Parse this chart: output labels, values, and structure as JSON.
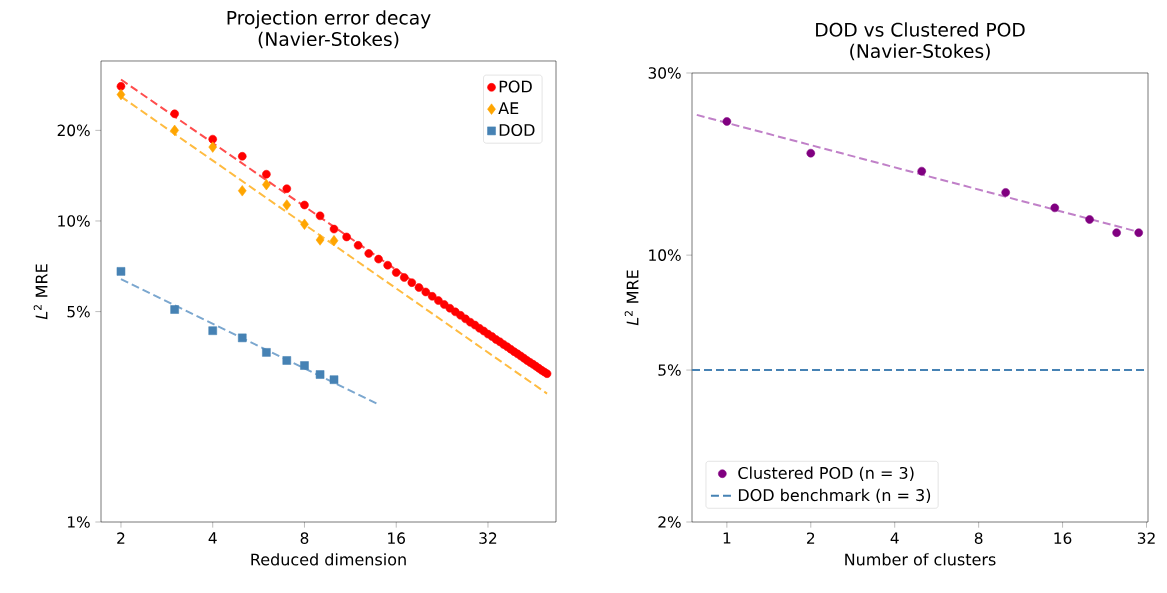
{
  "chart_data": [
    {
      "type": "scatter",
      "title": "Projection error decay",
      "subtitle": "(Navier-Stokes)",
      "xlabel": "Reduced dimension",
      "ylabel": "*L*$^{2}$ MRE",
      "log": "xy",
      "legend": "top right",
      "xlim": [
        1.72,
        53.5
      ],
      "ylim": [
        1,
        34
      ],
      "xticks": [
        2,
        4,
        8,
        16,
        32
      ],
      "yticks": [
        {
          "value": 1,
          "label": "1%"
        },
        {
          "value": 5,
          "label": "5%"
        },
        {
          "value": 10,
          "label": "10%"
        },
        {
          "value": 20,
          "label": "20%"
        }
      ],
      "series": [
        {
          "type": "line",
          "color": "#ff4d4d",
          "line_style": "dashed",
          "x": [
            2,
            50
          ],
          "values": [
            29.5,
            3.1
          ]
        },
        {
          "type": "line",
          "color": "#ffbb40",
          "line_style": "dashed",
          "x": [
            2,
            50
          ],
          "values": [
            25.9,
            2.67
          ]
        },
        {
          "type": "line",
          "color": "#7ba7cf",
          "line_style": "dashed",
          "x": [
            2,
            14
          ],
          "values": [
            6.41,
            2.46
          ]
        },
        {
          "name": "POD",
          "color": "#ff0000",
          "marker": "circle",
          "x": [
            2,
            3,
            4,
            5,
            6,
            7,
            8,
            9,
            10,
            11,
            12,
            13,
            14,
            15,
            16,
            17,
            18,
            19,
            20,
            21,
            22,
            23,
            24,
            25,
            26,
            27,
            28,
            29,
            30,
            31,
            32,
            33,
            34,
            35,
            36,
            37,
            38,
            39,
            40,
            41,
            42,
            43,
            44,
            45,
            46,
            47,
            48,
            49,
            50
          ],
          "values": [
            28,
            22.7,
            18.7,
            16.4,
            14.3,
            12.8,
            11.3,
            10.4,
            9.4,
            8.85,
            8.3,
            7.8,
            7.47,
            7.13,
            6.74,
            6.49,
            6.24,
            6.01,
            5.81,
            5.62,
            5.44,
            5.28,
            5.13,
            4.99,
            4.86,
            4.73,
            4.61,
            4.51,
            4.4,
            4.31,
            4.21,
            4.13,
            4.04,
            3.97,
            3.89,
            3.82,
            3.75,
            3.68,
            3.62,
            3.56,
            3.5,
            3.44,
            3.39,
            3.34,
            3.29,
            3.24,
            3.19,
            3.15,
            3.11
          ]
        },
        {
          "name": "AE",
          "color": "#ffa500",
          "marker": "diamond",
          "x": [
            2,
            3,
            4,
            5,
            6,
            7,
            8,
            9,
            10
          ],
          "values": [
            26.3,
            20.0,
            17.6,
            12.6,
            13.2,
            11.3,
            9.75,
            8.65,
            8.6
          ]
        },
        {
          "name": "DOD",
          "color": "#4682b4",
          "marker": "square",
          "x": [
            2,
            3,
            4,
            5,
            6,
            7,
            8,
            9,
            10
          ],
          "values": [
            6.8,
            5.08,
            4.32,
            4.09,
            3.66,
            3.44,
            3.31,
            3.09,
            2.97
          ]
        }
      ]
    },
    {
      "type": "scatter",
      "title": "DOD vs Clustered POD",
      "subtitle": "(Navier-Stokes)",
      "xlabel": "Number of clusters",
      "ylabel": "*L*$^{2}$ MRE",
      "log": "xy",
      "legend": "bottom left",
      "xlim": [
        0.75,
        32.4
      ],
      "ylim": [
        2,
        30
      ],
      "xticks": [
        1,
        2,
        4,
        8,
        16,
        32
      ],
      "yticks": [
        {
          "value": 2,
          "label": "2%"
        },
        {
          "value": 5,
          "label": "5%"
        },
        {
          "value": 10,
          "label": "10%"
        },
        {
          "value": 30,
          "label": "30%"
        }
      ],
      "series": [
        {
          "type": "line",
          "color": "#c080c8",
          "line_style": "dashed",
          "x": [
            0.78,
            30
          ],
          "values": [
            23.3,
            11.5
          ]
        },
        {
          "name": "Clustered POD (n = 3)",
          "color": "#800080",
          "marker": "circle",
          "x": [
            1,
            2,
            5,
            10,
            15,
            20,
            25,
            30
          ],
          "values": [
            22.4,
            18.5,
            16.6,
            14.6,
            13.3,
            12.4,
            11.45,
            11.45
          ]
        },
        {
          "name": "DOD benchmark (n = 3)",
          "type": "line",
          "color": "#4682b4",
          "line_style": "dashed",
          "x": [
            0.75,
            32.4
          ],
          "values": [
            5.0,
            5.0
          ]
        }
      ]
    }
  ]
}
